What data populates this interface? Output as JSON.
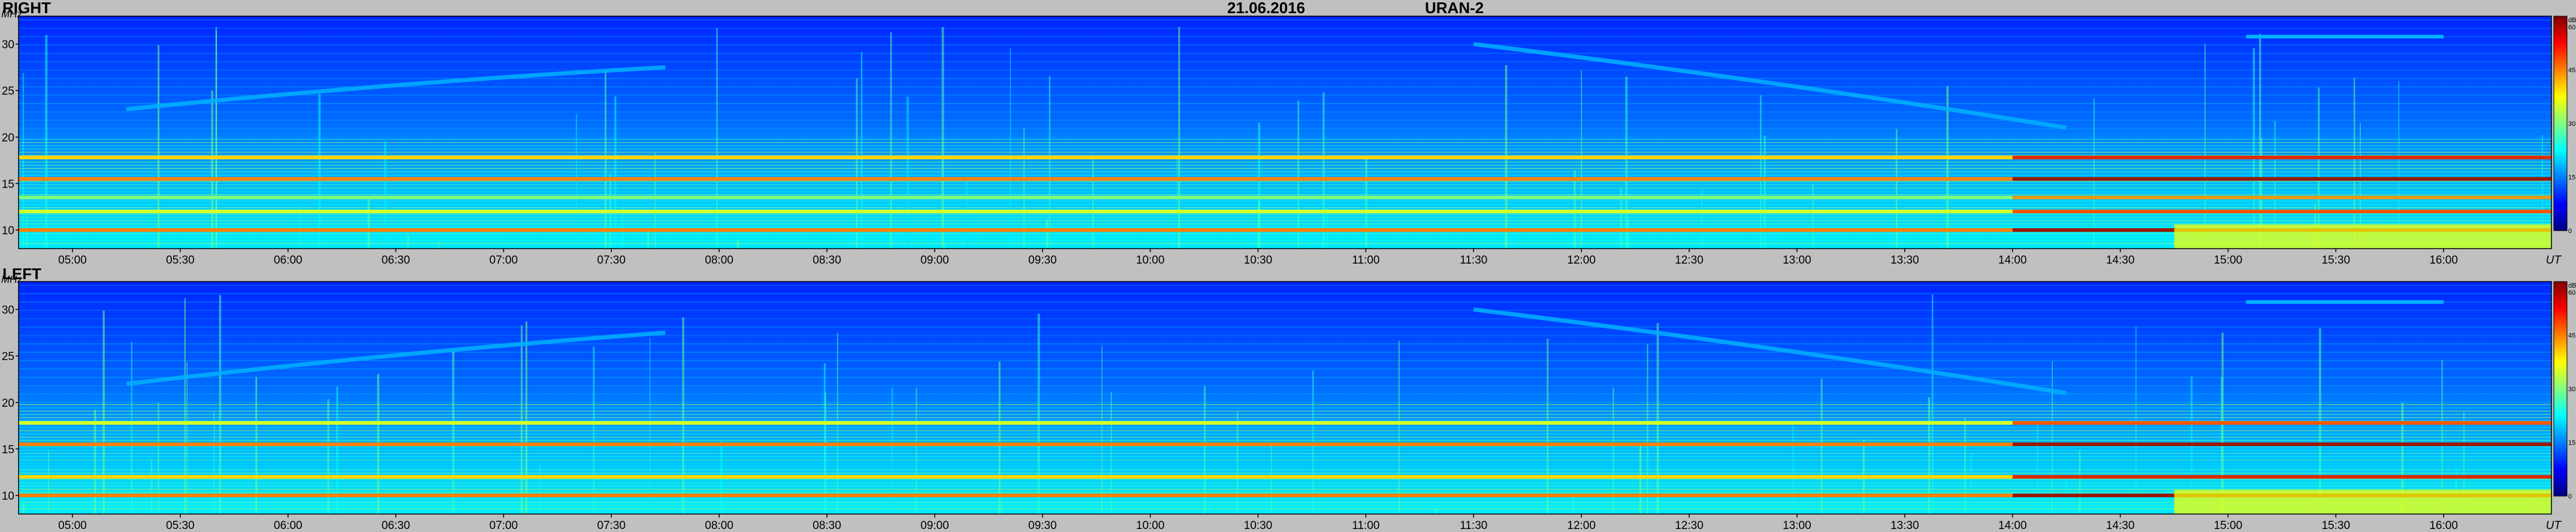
{
  "header": {
    "date": "21.06.2016",
    "instrument": "URAN-2"
  },
  "colors": {
    "background": "#c0c0c0",
    "colormap": [
      "#00007f",
      "#0000ff",
      "#007fff",
      "#00ffff",
      "#7fff7f",
      "#ffff00",
      "#ff7f00",
      "#ff0000",
      "#7f0000"
    ]
  },
  "chart_data": [
    {
      "type": "heatmap",
      "title": "RIGHT",
      "xlabel": "UT",
      "ylabel": "MHz",
      "x_ticks": [
        "05:00",
        "05:30",
        "06:00",
        "06:30",
        "07:00",
        "07:30",
        "08:00",
        "08:30",
        "09:00",
        "09:30",
        "10:00",
        "10:30",
        "11:00",
        "11:30",
        "12:00",
        "12:30",
        "13:00",
        "13:30",
        "14:00",
        "14:30",
        "15:00",
        "15:30",
        "16:00"
      ],
      "y_ticks": [
        "10",
        "15",
        "20",
        "25",
        "30"
      ],
      "xlim": [
        "04:45",
        "16:30"
      ],
      "ylim": [
        8,
        33
      ],
      "colorbar": {
        "unit": "dB",
        "ticks": [
          "0",
          "15",
          "30",
          "45",
          "60"
        ],
        "range": [
          0,
          60
        ]
      },
      "features": [
        {
          "kind": "horizontal_band",
          "frequency_mhz": 10.0,
          "level_db": 45
        },
        {
          "kind": "horizontal_band",
          "frequency_mhz": 12.0,
          "level_db": 35
        },
        {
          "kind": "horizontal_band",
          "frequency_mhz": 13.5,
          "level_db": 30
        },
        {
          "kind": "horizontal_band",
          "frequency_mhz": 15.5,
          "level_db": 45
        },
        {
          "kind": "horizontal_band",
          "frequency_mhz": 17.8,
          "level_db": 40
        },
        {
          "kind": "drifting_band",
          "start": {
            "time": "05:15",
            "frequency_mhz": 23
          },
          "end": {
            "time": "07:45",
            "frequency_mhz": 27.5
          },
          "level_db": 18
        },
        {
          "kind": "drifting_band",
          "start": {
            "time": "11:30",
            "frequency_mhz": 30
          },
          "end": {
            "time": "14:15",
            "frequency_mhz": 21
          },
          "level_db": 18
        },
        {
          "kind": "horizontal_band",
          "start_time": "15:05",
          "end_time": "16:00",
          "frequency_mhz": 30.8,
          "level_db": 18
        }
      ]
    },
    {
      "type": "heatmap",
      "title": "LEFT",
      "xlabel": "UT",
      "ylabel": "MHz",
      "x_ticks": [
        "05:00",
        "05:30",
        "06:00",
        "06:30",
        "07:00",
        "07:30",
        "08:00",
        "08:30",
        "09:00",
        "09:30",
        "10:00",
        "10:30",
        "11:00",
        "11:30",
        "12:00",
        "12:30",
        "13:00",
        "13:30",
        "14:00",
        "14:30",
        "15:00",
        "15:30",
        "16:00"
      ],
      "y_ticks": [
        "10",
        "15",
        "20",
        "25",
        "30"
      ],
      "xlim": [
        "04:45",
        "16:30"
      ],
      "ylim": [
        8,
        33
      ],
      "colorbar": {
        "unit": "dB",
        "ticks": [
          "0",
          "15",
          "30",
          "45",
          "60"
        ],
        "range": [
          0,
          60
        ]
      },
      "features": [
        {
          "kind": "horizontal_band",
          "frequency_mhz": 10.0,
          "level_db": 45
        },
        {
          "kind": "horizontal_band",
          "frequency_mhz": 12.0,
          "level_db": 40
        },
        {
          "kind": "horizontal_band",
          "frequency_mhz": 15.5,
          "level_db": 45
        },
        {
          "kind": "horizontal_band",
          "frequency_mhz": 17.8,
          "level_db": 35
        },
        {
          "kind": "drifting_band",
          "start": {
            "time": "05:15",
            "frequency_mhz": 22
          },
          "end": {
            "time": "07:45",
            "frequency_mhz": 27.5
          },
          "level_db": 18
        },
        {
          "kind": "drifting_band",
          "start": {
            "time": "11:30",
            "frequency_mhz": 30
          },
          "end": {
            "time": "14:15",
            "frequency_mhz": 21
          },
          "level_db": 18
        },
        {
          "kind": "horizontal_band",
          "start_time": "15:05",
          "end_time": "16:00",
          "frequency_mhz": 30.8,
          "level_db": 18
        }
      ]
    }
  ]
}
